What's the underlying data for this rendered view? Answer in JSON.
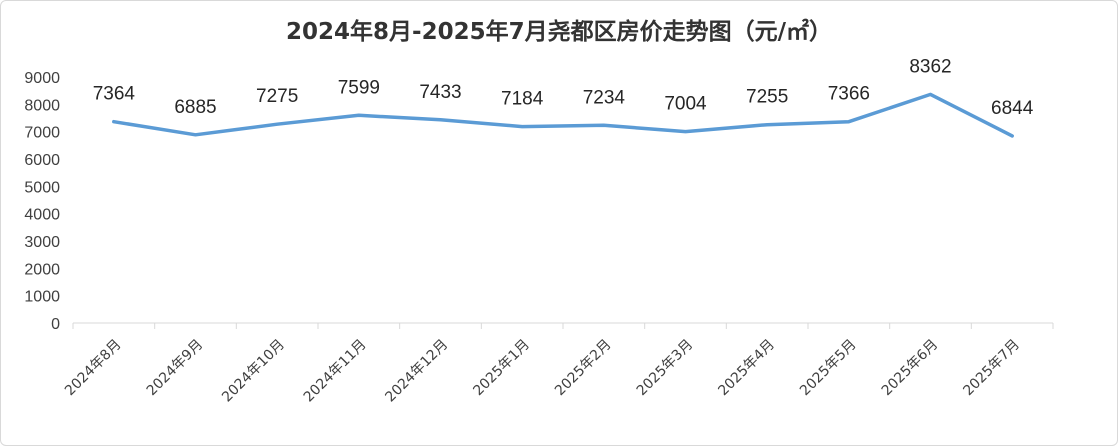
{
  "chart_data": {
    "type": "line",
    "title": "2024年8月-2025年7月尧都区房价走势图（元/㎡）",
    "xlabel": "",
    "ylabel": "",
    "categories": [
      "2024年8月",
      "2024年9月",
      "2024年10月",
      "2024年11月",
      "2024年12月",
      "2025年1月",
      "2025年2月",
      "2025年3月",
      "2025年4月",
      "2025年5月",
      "2025年6月",
      "2025年7月"
    ],
    "series": [
      {
        "values": [
          7364,
          6885,
          7275,
          7599,
          7433,
          7184,
          7234,
          7004,
          7255,
          7366,
          8362,
          6844
        ]
      }
    ],
    "data_labels": [
      "7364",
      "6885",
      "7275",
      "7599",
      "7433",
      "7184",
      "7234",
      "7004",
      "7255",
      "7366",
      "8362",
      "6844"
    ],
    "ylim": [
      0,
      9000
    ],
    "yticks": [
      "0",
      "1000",
      "2000",
      "3000",
      "4000",
      "5000",
      "6000",
      "7000",
      "8000",
      "9000"
    ],
    "grid": false,
    "legend": "none",
    "line_color": "#5b9bd5",
    "axis_color": "#d9d9d9"
  }
}
